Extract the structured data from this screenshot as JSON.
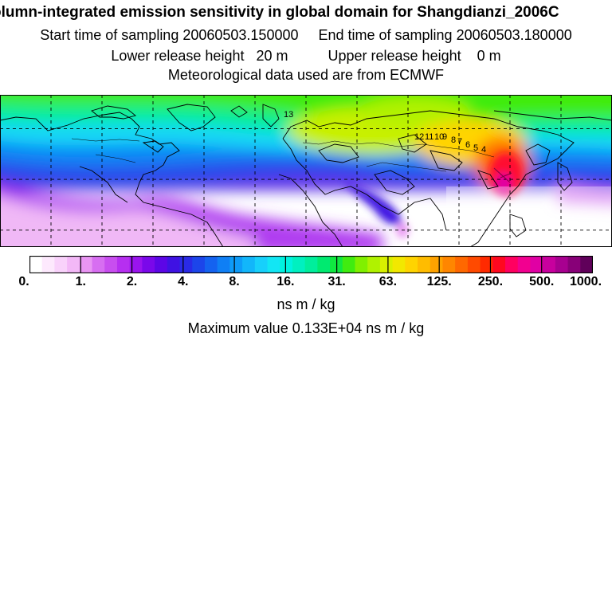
{
  "header": {
    "title": "olumn-integrated emission sensitivity in global domain for Shangdianzi_2006C",
    "sampling_line": "Start time of sampling 20060503.150000     End time of sampling 20060503.180000",
    "release_line": "Lower release height   20 m          Upper release height    0 m",
    "met_line": "Meteorological data used are from ECMWF"
  },
  "map": {
    "contour_labels": [
      "13",
      "12",
      "11",
      "10",
      "9",
      "8",
      "7",
      "6",
      "5",
      "4"
    ],
    "grid": true,
    "graticule_spacing_deg": 30,
    "extent": {
      "lon": [
        -180,
        180
      ],
      "lat": [
        -10,
        80
      ]
    }
  },
  "colorbar": {
    "tick_labels": [
      "0.",
      "1.",
      "2.",
      "4.",
      "8.",
      "16.",
      "31.",
      "63.",
      "125.",
      "250.",
      "500.",
      "1000."
    ],
    "colors": [
      "#ffffff",
      "#fde9fd",
      "#f9d2fb",
      "#f3b8f7",
      "#e995f3",
      "#d76ef1",
      "#c84eef",
      "#b62ff0",
      "#9a14ee",
      "#7a08ea",
      "#5c06e6",
      "#3f12e3",
      "#2a2ae6",
      "#1c45ea",
      "#1462f0",
      "#0f7ff5",
      "#0e9bf8",
      "#12b6fa",
      "#17d0fb",
      "#12e6f4",
      "#00f2e0",
      "#00f0c0",
      "#00ee9c",
      "#00ea70",
      "#10e840",
      "#40ec10",
      "#80f000",
      "#b0f200",
      "#d8f000",
      "#f2e800",
      "#ffd400",
      "#ffbc00",
      "#ffa200",
      "#ff8600",
      "#ff6800",
      "#ff4a00",
      "#ff2a00",
      "#ff0820",
      "#ff0060",
      "#f20090",
      "#e000a4",
      "#c8009e",
      "#a80090",
      "#880078",
      "#60005a"
    ],
    "units": "ns m / kg",
    "max_value_text": "Maximum value  0.133E+04 ns m / kg"
  }
}
